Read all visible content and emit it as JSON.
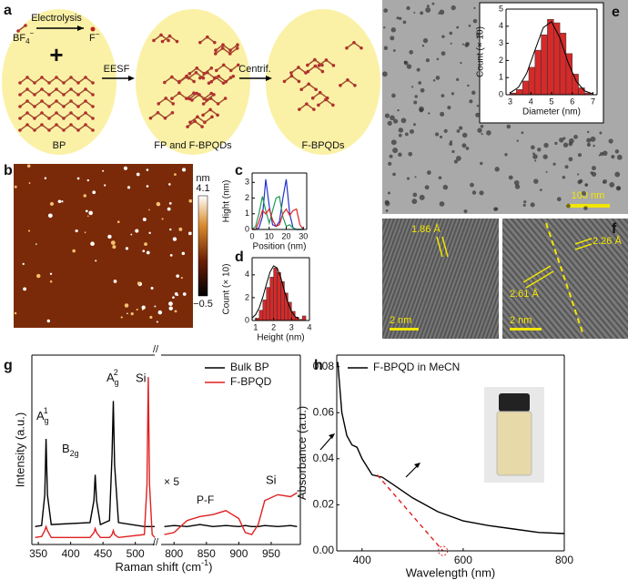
{
  "panel_labels": [
    "a",
    "b",
    "c",
    "d",
    "e",
    "f",
    "g",
    "h"
  ],
  "scheme": {
    "electrolysis": "Electrolysis",
    "bf4": {
      "base": "BF",
      "sub": "4",
      "sup": "−"
    },
    "fluoride": {
      "base": "F",
      "sup": "−"
    },
    "plus": "+",
    "eesf": "EESF",
    "centrif": "Centrif.",
    "bp": "BP",
    "fp": "FP and F-BPQDs",
    "fbpqds": "F-BPQDs"
  },
  "afm": {
    "unit": "nm",
    "max": "4.1",
    "min": "−0.5"
  },
  "tem": {
    "scale_bar": "100 nm"
  },
  "hrtem": {
    "spacing_1": "1.86 Å",
    "scale_bar_1": "2 nm",
    "spacing_2": "2.26 Å",
    "spacing_3": "2.61 Å",
    "scale_bar_2": "2 nm"
  },
  "chart_data": [
    {
      "type": "line",
      "x_label": "Position (nm)",
      "y_label": "Hight (nm)",
      "xlim": [
        0,
        32
      ],
      "ylim": [
        0,
        3.6
      ],
      "xticks": [
        0,
        10,
        20,
        30
      ],
      "yticks": [
        0,
        1,
        2,
        3
      ],
      "x": [
        0,
        2,
        4,
        6,
        8,
        10,
        12,
        14,
        16,
        18,
        20,
        22,
        24,
        26,
        28,
        30
      ],
      "series": [
        {
          "color": "#2233cc",
          "values": [
            0,
            0,
            0.1,
            0.8,
            3.2,
            1.5,
            0.3,
            0.2,
            0.5,
            2.0,
            3.2,
            1.0,
            0.1,
            0,
            0,
            0
          ]
        },
        {
          "color": "#22995a",
          "values": [
            0,
            0.2,
            1.0,
            2.1,
            1.2,
            0.4,
            1.2,
            2.0,
            2.1,
            0.8,
            0.2,
            0.3,
            0.1,
            0,
            0,
            0
          ]
        },
        {
          "color": "#dd2222",
          "values": [
            0,
            0,
            0.5,
            1.2,
            1.0,
            1.3,
            0.6,
            0.2,
            0.3,
            1.0,
            1.3,
            0.9,
            1.2,
            1.3,
            0.3,
            0
          ]
        }
      ]
    },
    {
      "type": "histogram",
      "x_label": "Height (nm)",
      "y_label": "Count (× 10)",
      "xlim": [
        0.8,
        4.0
      ],
      "ylim": [
        0,
        5.5
      ],
      "xticks": [
        1,
        2,
        3,
        4
      ],
      "yticks": [
        0,
        2,
        4
      ],
      "color": "#d42a2a",
      "bins": [
        1.0,
        1.2,
        1.4,
        1.6,
        1.8,
        2.0,
        2.2,
        2.4,
        2.6,
        2.8,
        3.0,
        3.2,
        3.4,
        3.6,
        3.8
      ],
      "values": [
        0.2,
        0.9,
        1.8,
        2.9,
        3.8,
        4.6,
        4.2,
        3.4,
        2.4,
        1.6,
        0.8,
        0.3,
        0.1,
        0.4
      ],
      "fit": {
        "color": "#000000",
        "x": [
          0.8,
          1.0,
          1.2,
          1.4,
          1.6,
          1.8,
          2.0,
          2.2,
          2.4,
          2.6,
          2.8,
          3.0,
          3.2,
          3.4
        ],
        "values": [
          0.21,
          0.53,
          1.13,
          2.06,
          3.2,
          4.24,
          4.78,
          4.59,
          3.76,
          2.62,
          1.56,
          0.79,
          0.34,
          0.13
        ]
      }
    },
    {
      "type": "histogram",
      "x_label": "Diameter (nm)",
      "y_label": "Count (× 10)",
      "xlim": [
        2.8,
        7.2
      ],
      "ylim": [
        0,
        5
      ],
      "xticks": [
        3,
        4,
        5,
        6,
        7
      ],
      "yticks": [
        0,
        1,
        2,
        3,
        4,
        5
      ],
      "color": "#d42a2a",
      "bins": [
        3.0,
        3.3,
        3.6,
        3.9,
        4.2,
        4.5,
        4.8,
        5.1,
        5.4,
        5.7,
        6.0,
        6.3,
        6.6,
        6.9
      ],
      "values": [
        0.1,
        0.3,
        0.8,
        1.6,
        2.6,
        3.5,
        4.4,
        4.2,
        3.6,
        2.4,
        1.2,
        0.4,
        0.1
      ],
      "fit": {
        "color": "#000000",
        "x": [
          3.0,
          3.4,
          3.8,
          4.2,
          4.6,
          5.0,
          5.4,
          5.8,
          6.2,
          6.6,
          7.0
        ],
        "values": [
          0.11,
          0.43,
          1.25,
          2.61,
          3.92,
          4.26,
          3.33,
          1.88,
          0.77,
          0.22,
          0.05
        ]
      }
    },
    {
      "type": "line",
      "y_label": "Intensity (a.u.)",
      "x_label": {
        "text": "Raman shift (cm",
        "sup": "-1",
        "end": ")"
      },
      "legend": "upper right",
      "xlim": [
        340,
        530
      ],
      "ylim": [
        0,
        9.5
      ],
      "xticks": [
        350,
        400,
        450,
        500
      ],
      "peak_labels": [
        {
          "base": "A",
          "sub": "g",
          "sup": "1"
        },
        {
          "base": "B",
          "sub": "2g"
        },
        {
          "base": "A",
          "sub": "g",
          "sup": "2"
        },
        {
          "base": "Si"
        }
      ],
      "x": [
        345,
        355,
        360,
        362,
        364,
        370,
        430,
        436,
        438,
        440,
        446,
        460,
        464,
        466,
        468,
        474,
        514,
        518,
        520,
        522,
        526,
        530
      ],
      "series": [
        {
          "name": "Bulk BP",
          "color": "#000000",
          "values": [
            0.9,
            0.95,
            2.5,
            5.3,
            2.5,
            1.0,
            1.1,
            2.2,
            3.5,
            2.2,
            1.0,
            1.2,
            4.5,
            7.2,
            4.0,
            1.1,
            0.9,
            0.9,
            0.9,
            0.9,
            0.9,
            0.9
          ]
        },
        {
          "name": "F-BPQD",
          "color": "#e02020",
          "values": [
            0.35,
            0.4,
            0.7,
            0.9,
            0.7,
            0.35,
            0.35,
            0.6,
            0.8,
            0.6,
            0.35,
            0.35,
            0.5,
            0.7,
            0.5,
            0.35,
            0.5,
            3,
            8.4,
            3,
            0.5,
            0.35
          ]
        }
      ]
    },
    {
      "type": "line",
      "xlim": [
        780,
        995
      ],
      "ylim": [
        0,
        9.5
      ],
      "xticks": [
        800,
        850,
        900,
        950
      ],
      "annotations": [
        "× 5",
        "P-F",
        "Si"
      ],
      "x": [
        785,
        800,
        820,
        840,
        860,
        880,
        900,
        910,
        920,
        930,
        940,
        960,
        980,
        990
      ],
      "series": [
        {
          "color": "#000000",
          "values": [
            0.9,
            0.95,
            0.9,
            1.0,
            0.9,
            0.95,
            0.9,
            0.95,
            0.9,
            0.9,
            0.95,
            0.9,
            0.95,
            0.9
          ]
        },
        {
          "color": "#e02020",
          "values": [
            0.5,
            0.6,
            1.2,
            1.4,
            1.5,
            1.7,
            1.3,
            0.6,
            0.5,
            1.0,
            2.2,
            2.5,
            2.4,
            2.6
          ]
        }
      ]
    },
    {
      "type": "line",
      "x_label": "Wavelength (nm)",
      "y_label": "Absorbance (a.u.)",
      "legend": "upper left",
      "xlim": [
        350,
        800
      ],
      "ylim": [
        0,
        0.085
      ],
      "xticks": [
        400,
        600,
        800
      ],
      "yticks": [
        {
          "value": 0,
          "label": "0.00"
        },
        {
          "value": 0.02,
          "label": "0.02"
        },
        {
          "value": 0.04,
          "label": "0.04"
        },
        {
          "value": 0.06,
          "label": "0.06"
        },
        {
          "value": 0.08,
          "label": "0.08"
        }
      ],
      "series": [
        {
          "name": "F-BPQD in MeCN",
          "color": "#000000",
          "x": [
            352,
            360,
            370,
            380,
            390,
            400,
            420,
            440,
            460,
            500,
            550,
            600,
            650,
            700,
            750,
            800
          ],
          "values": [
            0.082,
            0.06,
            0.05,
            0.046,
            0.045,
            0.04,
            0.033,
            0.032,
            0.029,
            0.023,
            0.017,
            0.013,
            0.011,
            0.0095,
            0.008,
            0.0075
          ]
        },
        {
          "color": "#e02020",
          "style": "dashed",
          "x": [
            430,
            560
          ],
          "values": [
            0.033,
            0.0
          ]
        }
      ]
    }
  ]
}
